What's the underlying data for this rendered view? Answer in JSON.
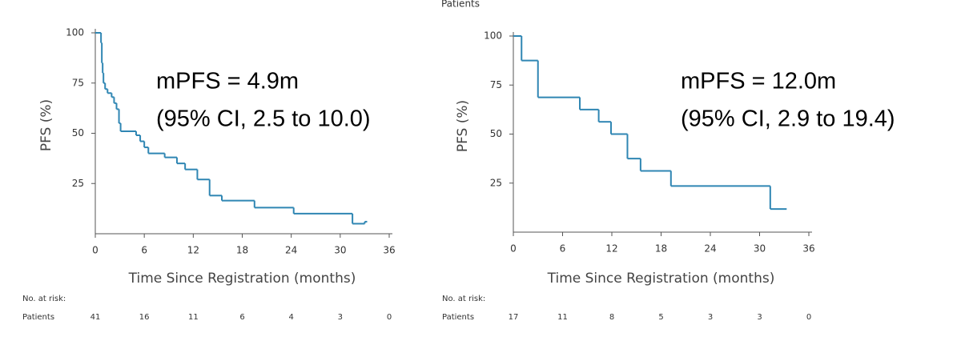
{
  "header": "Patients",
  "chart_data": [
    {
      "type": "step",
      "color": "#2f86b3",
      "xlabel": "Time Since Registration (months)",
      "ylabel": "PFS (%)",
      "xlim": [
        0,
        36
      ],
      "xticks": [
        0,
        6,
        12,
        18,
        24,
        30,
        36
      ],
      "ylim": [
        0,
        100
      ],
      "yticks": [
        25,
        50,
        75,
        100
      ],
      "x": [
        0,
        0.7,
        0.8,
        0.9,
        1.0,
        1.2,
        1.5,
        2.0,
        2.3,
        2.6,
        2.9,
        3.1,
        5.0,
        5.5,
        6.0,
        6.5,
        8.5,
        10.0,
        11.0,
        12.5,
        14.0,
        15.5,
        19.5,
        24.3,
        31.5,
        33.0,
        33.3
      ],
      "values": [
        100,
        95,
        85,
        80,
        75,
        72,
        70,
        68,
        65,
        62,
        55,
        51,
        49,
        46,
        43,
        40,
        38,
        35,
        32,
        27,
        19,
        16.5,
        13,
        10,
        5,
        6,
        6
      ],
      "annotations": [
        "mPFS = 4.9m",
        "(95% CI, 2.5 to 10.0)"
      ],
      "risk_title": "No. at risk:",
      "risk_label": "Patients",
      "at_risk": [
        41,
        16,
        11,
        6,
        4,
        3,
        0
      ]
    },
    {
      "type": "step",
      "color": "#2f86b3",
      "xlabel": "Time Since Registration (months)",
      "ylabel": "PFS (%)",
      "xlim": [
        0,
        36
      ],
      "xticks": [
        0,
        6,
        12,
        18,
        24,
        30,
        36
      ],
      "ylim": [
        0,
        100
      ],
      "yticks": [
        25,
        50,
        75,
        100
      ],
      "x": [
        0,
        1.0,
        3.0,
        8.1,
        10.4,
        11.9,
        13.9,
        15.5,
        19.2,
        31.3,
        33.3
      ],
      "values": [
        100,
        87.5,
        68.75,
        62.5,
        56.25,
        50,
        37.5,
        31.25,
        23.5,
        11.8,
        11.8
      ],
      "annotations": [
        "mPFS = 12.0m",
        "(95% CI, 2.9 to 19.4)"
      ],
      "risk_title": "No. at risk:",
      "risk_label": "Patients",
      "at_risk": [
        17,
        11,
        8,
        5,
        3,
        3,
        0
      ]
    }
  ]
}
